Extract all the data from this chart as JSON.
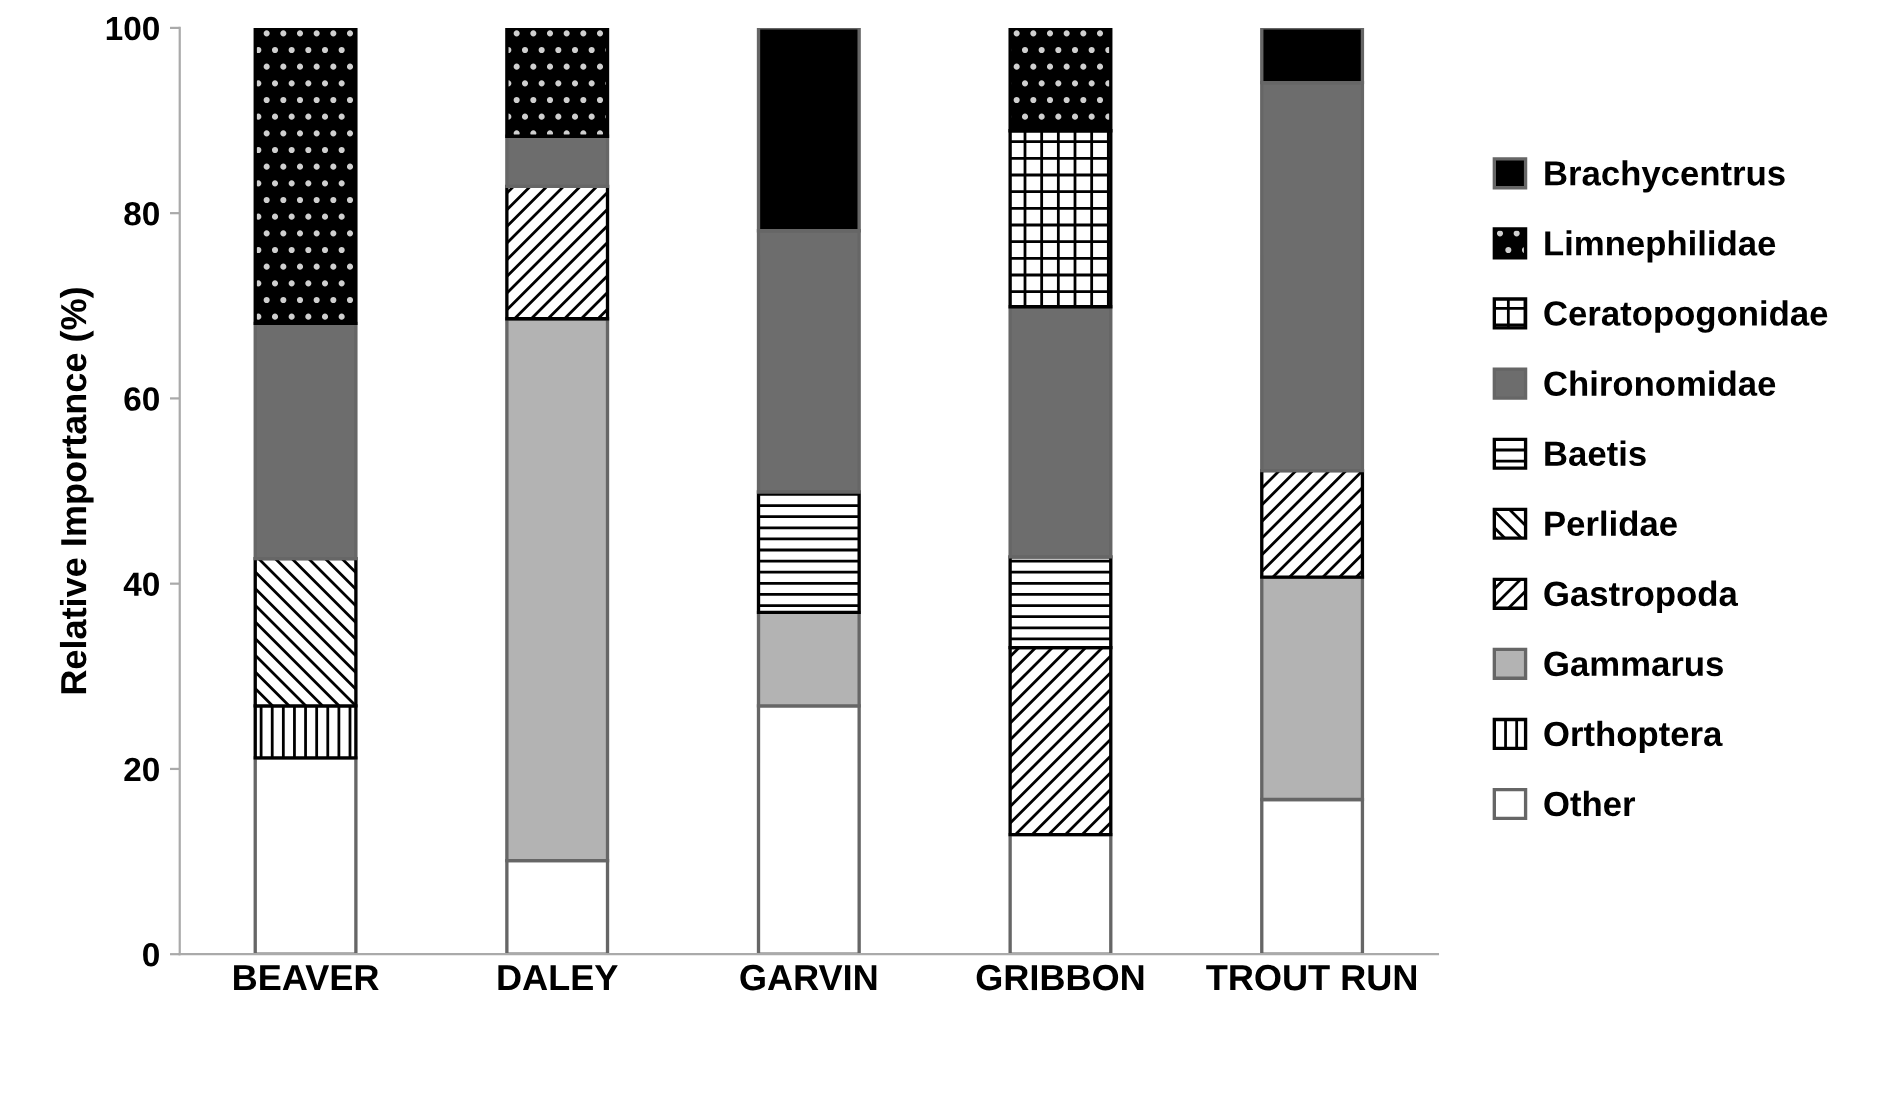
{
  "chart_data": {
    "type": "bar",
    "stacked": true,
    "ylabel": "Relative Importance (%)",
    "categories": [
      "BEAVER",
      "DALEY",
      "GARVIN",
      "GRIBBON",
      "TROUT RUN"
    ],
    "ylim": [
      0,
      100
    ],
    "yticks": [
      0,
      20,
      40,
      60,
      80,
      100
    ],
    "grid": false,
    "legend": "right",
    "series": [
      {
        "name": "Other",
        "color": "#ffffff",
        "values": [
          21.2,
          10.1,
          26.8,
          12.9,
          16.7
        ]
      },
      {
        "name": "Orthoptera",
        "color": "#000000",
        "values": [
          5.6,
          null,
          null,
          null,
          null
        ]
      },
      {
        "name": "Gammarus",
        "color": "#b3b3b3",
        "values": [
          null,
          58.5,
          10.1,
          null,
          24.0
        ]
      },
      {
        "name": "Gastropoda",
        "color": "#000000",
        "values": [
          null,
          14.3,
          null,
          20.2,
          11.5
        ]
      },
      {
        "name": "Perlidae",
        "color": "#000000",
        "values": [
          15.9,
          null,
          null,
          null,
          null
        ]
      },
      {
        "name": "Baetis",
        "color": "#000000",
        "values": [
          null,
          null,
          13.0,
          9.8,
          null
        ]
      },
      {
        "name": "Chironomidae",
        "color": "#6d6d6d",
        "values": [
          25.4,
          5.4,
          28.2,
          27.0,
          41.9
        ]
      },
      {
        "name": "Ceratopogonidae",
        "color": "#000000",
        "values": [
          null,
          null,
          null,
          19.0,
          null
        ]
      },
      {
        "name": "Limnephilidae",
        "color": "#000000",
        "values": [
          31.9,
          11.7,
          null,
          11.1,
          null
        ]
      },
      {
        "name": "Brachycentrus",
        "color": "#000000",
        "values": [
          null,
          null,
          21.9,
          null,
          5.9
        ]
      }
    ]
  }
}
